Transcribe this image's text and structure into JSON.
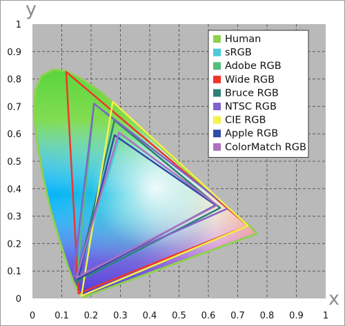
{
  "chart_data": {
    "type": "line",
    "title": "",
    "xlabel": "x",
    "ylabel": "y",
    "xlim": [
      0,
      1
    ],
    "ylim": [
      0,
      1
    ],
    "grid": true,
    "legend_placement": "top-right",
    "background": "#b9b9b9",
    "x_ticks": [
      "0",
      "0.1",
      "0.2",
      "0.3",
      "0.4",
      "0.5",
      "0.6",
      "0.7",
      "0.8",
      "0.9",
      "1"
    ],
    "y_ticks": [
      "0",
      "0.1",
      "0.2",
      "0.3",
      "0.4",
      "0.5",
      "0.6",
      "0.7",
      "0.8",
      "0.9",
      "1"
    ],
    "series": [
      {
        "name": "Human",
        "color": "#8fd14f",
        "kind": "locus",
        "points": [
          [
            0.175,
            0.005
          ],
          [
            0.16,
            0.02
          ],
          [
            0.14,
            0.06
          ],
          [
            0.12,
            0.12
          ],
          [
            0.09,
            0.22
          ],
          [
            0.06,
            0.33
          ],
          [
            0.035,
            0.45
          ],
          [
            0.015,
            0.58
          ],
          [
            0.005,
            0.68
          ],
          [
            0.01,
            0.76
          ],
          [
            0.03,
            0.81
          ],
          [
            0.07,
            0.834
          ],
          [
            0.11,
            0.83
          ],
          [
            0.16,
            0.805
          ],
          [
            0.23,
            0.755
          ],
          [
            0.3,
            0.69
          ],
          [
            0.37,
            0.62
          ],
          [
            0.44,
            0.55
          ],
          [
            0.51,
            0.48
          ],
          [
            0.58,
            0.41
          ],
          [
            0.65,
            0.345
          ],
          [
            0.71,
            0.29
          ],
          [
            0.75,
            0.255
          ],
          [
            0.765,
            0.236
          ],
          [
            0.175,
            0.005
          ]
        ]
      },
      {
        "name": "sRGB",
        "color": "#4fc8d8",
        "points": [
          [
            0.64,
            0.33
          ],
          [
            0.3,
            0.6
          ],
          [
            0.15,
            0.06
          ]
        ]
      },
      {
        "name": "Adobe RGB",
        "color": "#52bf7c",
        "points": [
          [
            0.64,
            0.33
          ],
          [
            0.21,
            0.71
          ],
          [
            0.15,
            0.06
          ]
        ]
      },
      {
        "name": "Wide RGB",
        "color": "#f2342b",
        "points": [
          [
            0.735,
            0.265
          ],
          [
            0.115,
            0.826
          ],
          [
            0.157,
            0.018
          ]
        ]
      },
      {
        "name": "Bruce RGB",
        "color": "#2e7f78",
        "points": [
          [
            0.64,
            0.33
          ],
          [
            0.28,
            0.65
          ],
          [
            0.15,
            0.06
          ]
        ]
      },
      {
        "name": "NTSC RGB",
        "color": "#7f64c8",
        "points": [
          [
            0.67,
            0.33
          ],
          [
            0.21,
            0.71
          ],
          [
            0.14,
            0.08
          ]
        ]
      },
      {
        "name": "CIE RGB",
        "color": "#f2f24a",
        "points": [
          [
            0.735,
            0.265
          ],
          [
            0.274,
            0.717
          ],
          [
            0.167,
            0.009
          ]
        ]
      },
      {
        "name": "Apple RGB",
        "color": "#2f4aa8",
        "points": [
          [
            0.625,
            0.34
          ],
          [
            0.28,
            0.595
          ],
          [
            0.155,
            0.07
          ]
        ]
      },
      {
        "name": "ColorMatch RGB",
        "color": "#b070c0",
        "points": [
          [
            0.63,
            0.34
          ],
          [
            0.295,
            0.605
          ],
          [
            0.15,
            0.075
          ]
        ]
      }
    ]
  }
}
